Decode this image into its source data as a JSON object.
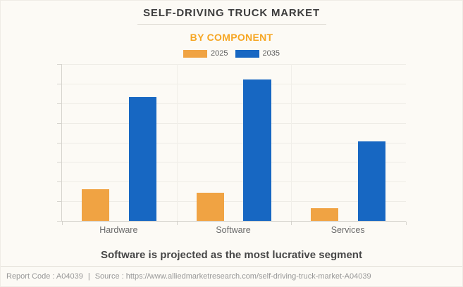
{
  "page": {
    "title": "SELF-DRIVING TRUCK MARKET",
    "subtitle": "BY COMPONENT",
    "caption": "Software is projected as the most lucrative segment",
    "footer": {
      "report_code": "Report Code : A04039",
      "separator": "|",
      "source": "Source : https://www.alliedmarketresearch.com/self-driving-truck-market-A04039"
    }
  },
  "colors": {
    "series_2025": "#F0A343",
    "series_2035": "#1767C2",
    "subtitle_accent": "#F6A623",
    "title_text": "#3D3D3D",
    "axis_label_text": "#6B6B6B",
    "footer_text": "#989898",
    "background": "#FCFAF5"
  },
  "chart_data": {
    "type": "bar",
    "title": "SELF-DRIVING TRUCK MARKET",
    "subtitle": "BY COMPONENT",
    "categories": [
      "Hardware",
      "Software",
      "Services"
    ],
    "series": [
      {
        "name": "2025",
        "color": "#F0A343",
        "values": [
          20.2,
          17.9,
          8.1
        ]
      },
      {
        "name": "2035",
        "color": "#1767C2",
        "values": [
          78.9,
          90.1,
          50.7
        ]
      }
    ],
    "xlabel": "",
    "ylabel": "",
    "y_axis_tick_labels_visible": false,
    "value_note": "y-axis is unlabeled; values estimated from gridlines as percent of axis max (top gridline = 100)",
    "ylim": [
      0,
      100
    ],
    "gridline_intervals": 8,
    "grid": true,
    "legend_position": "top",
    "legend_entries": [
      "2025",
      "2035"
    ]
  }
}
